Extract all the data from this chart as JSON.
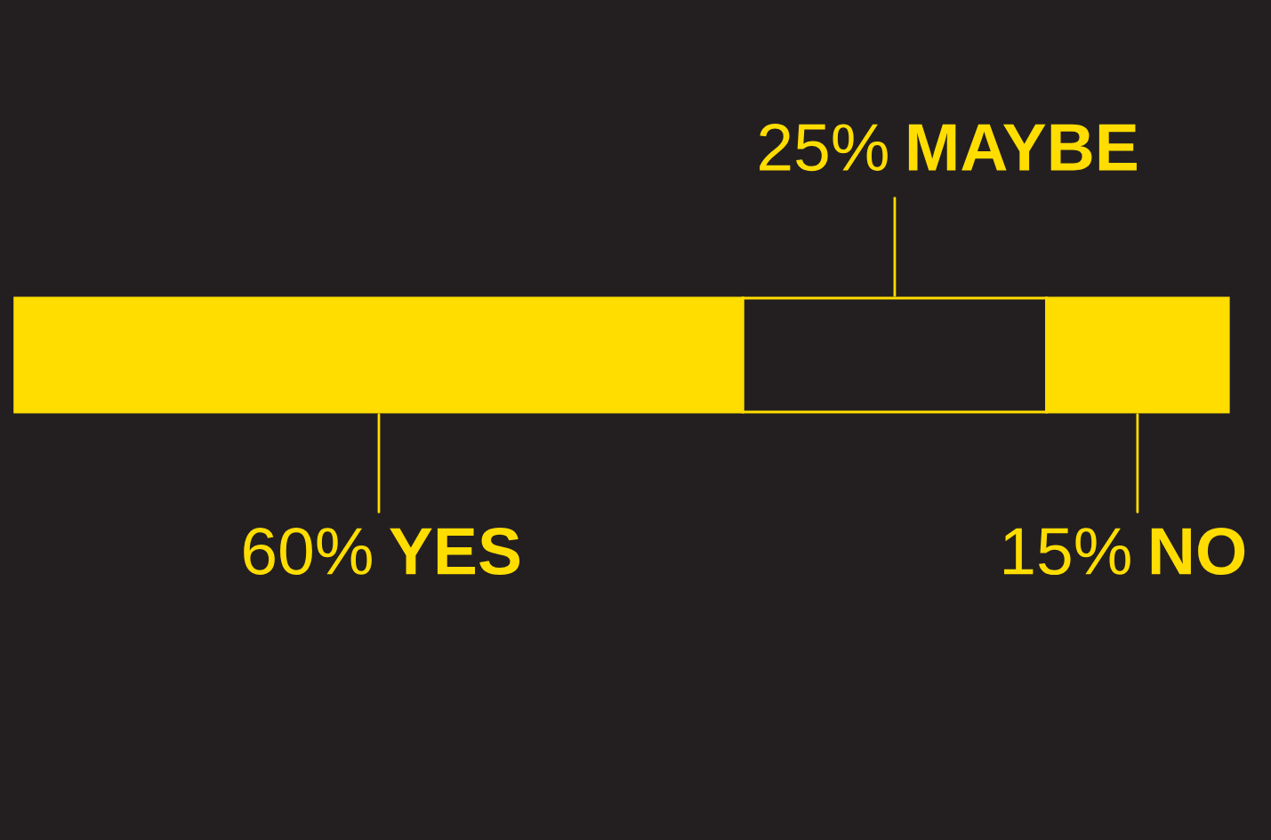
{
  "chart_data": {
    "type": "bar",
    "orientation": "horizontal",
    "stacked": true,
    "categories": [
      null
    ],
    "series": [
      {
        "name": "YES",
        "color": "#ffdd00",
        "values": [
          60
        ],
        "value_labels": [
          "60%"
        ]
      },
      {
        "name": "MAYBE",
        "color": "#231f20",
        "values": [
          25
        ],
        "value_labels": [
          "25%"
        ]
      },
      {
        "name": "NO",
        "color": "#ffdd00",
        "values": [
          15
        ],
        "value_labels": [
          "15%"
        ]
      }
    ]
  }
}
